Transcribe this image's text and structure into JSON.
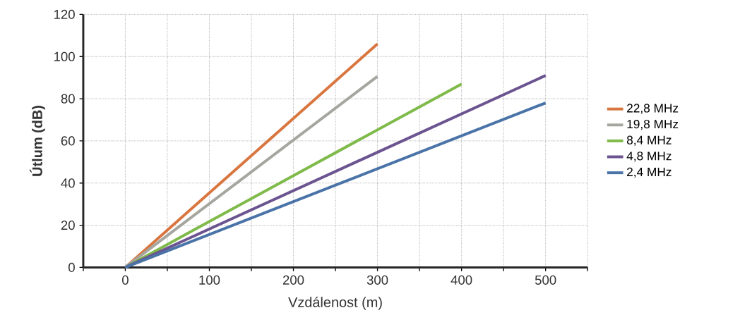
{
  "chart_data": {
    "type": "line",
    "xlabel": "Vzdálenost (m)",
    "ylabel": "Útlum (dB)",
    "xlim": [
      -50,
      550
    ],
    "ylim": [
      0,
      120
    ],
    "xticks": [
      {
        "value": -50,
        "label": null
      },
      0,
      {
        "value": 50,
        "label": null
      },
      100,
      {
        "value": 150,
        "label": null
      },
      200,
      {
        "value": 250,
        "label": null
      },
      300,
      {
        "value": 350,
        "label": null
      },
      400,
      {
        "value": 450,
        "label": null
      },
      500,
      {
        "value": 550,
        "label": null
      }
    ],
    "yticks": [
      0,
      20,
      40,
      60,
      80,
      100,
      120
    ],
    "grid": true,
    "legend": "right",
    "marker": "none",
    "line_style": "solid",
    "series": [
      {
        "name": "22,8 MHz",
        "color": "#d9763f",
        "x": [
          0,
          300
        ],
        "values": [
          0,
          106
        ]
      },
      {
        "name": "19,8 MHz",
        "color": "#a6a6a0",
        "x": [
          0,
          300
        ],
        "values": [
          0,
          90.6
        ]
      },
      {
        "name": "8,4 MHz",
        "color": "#7fba4a",
        "x": [
          0,
          400
        ],
        "values": [
          0,
          87
        ]
      },
      {
        "name": "4,8 MHz",
        "color": "#6b5490",
        "x": [
          0,
          500
        ],
        "values": [
          0,
          91
        ]
      },
      {
        "name": "2,4 MHz",
        "color": "#4a73a8",
        "x": [
          0,
          500
        ],
        "values": [
          0,
          78
        ]
      }
    ]
  }
}
